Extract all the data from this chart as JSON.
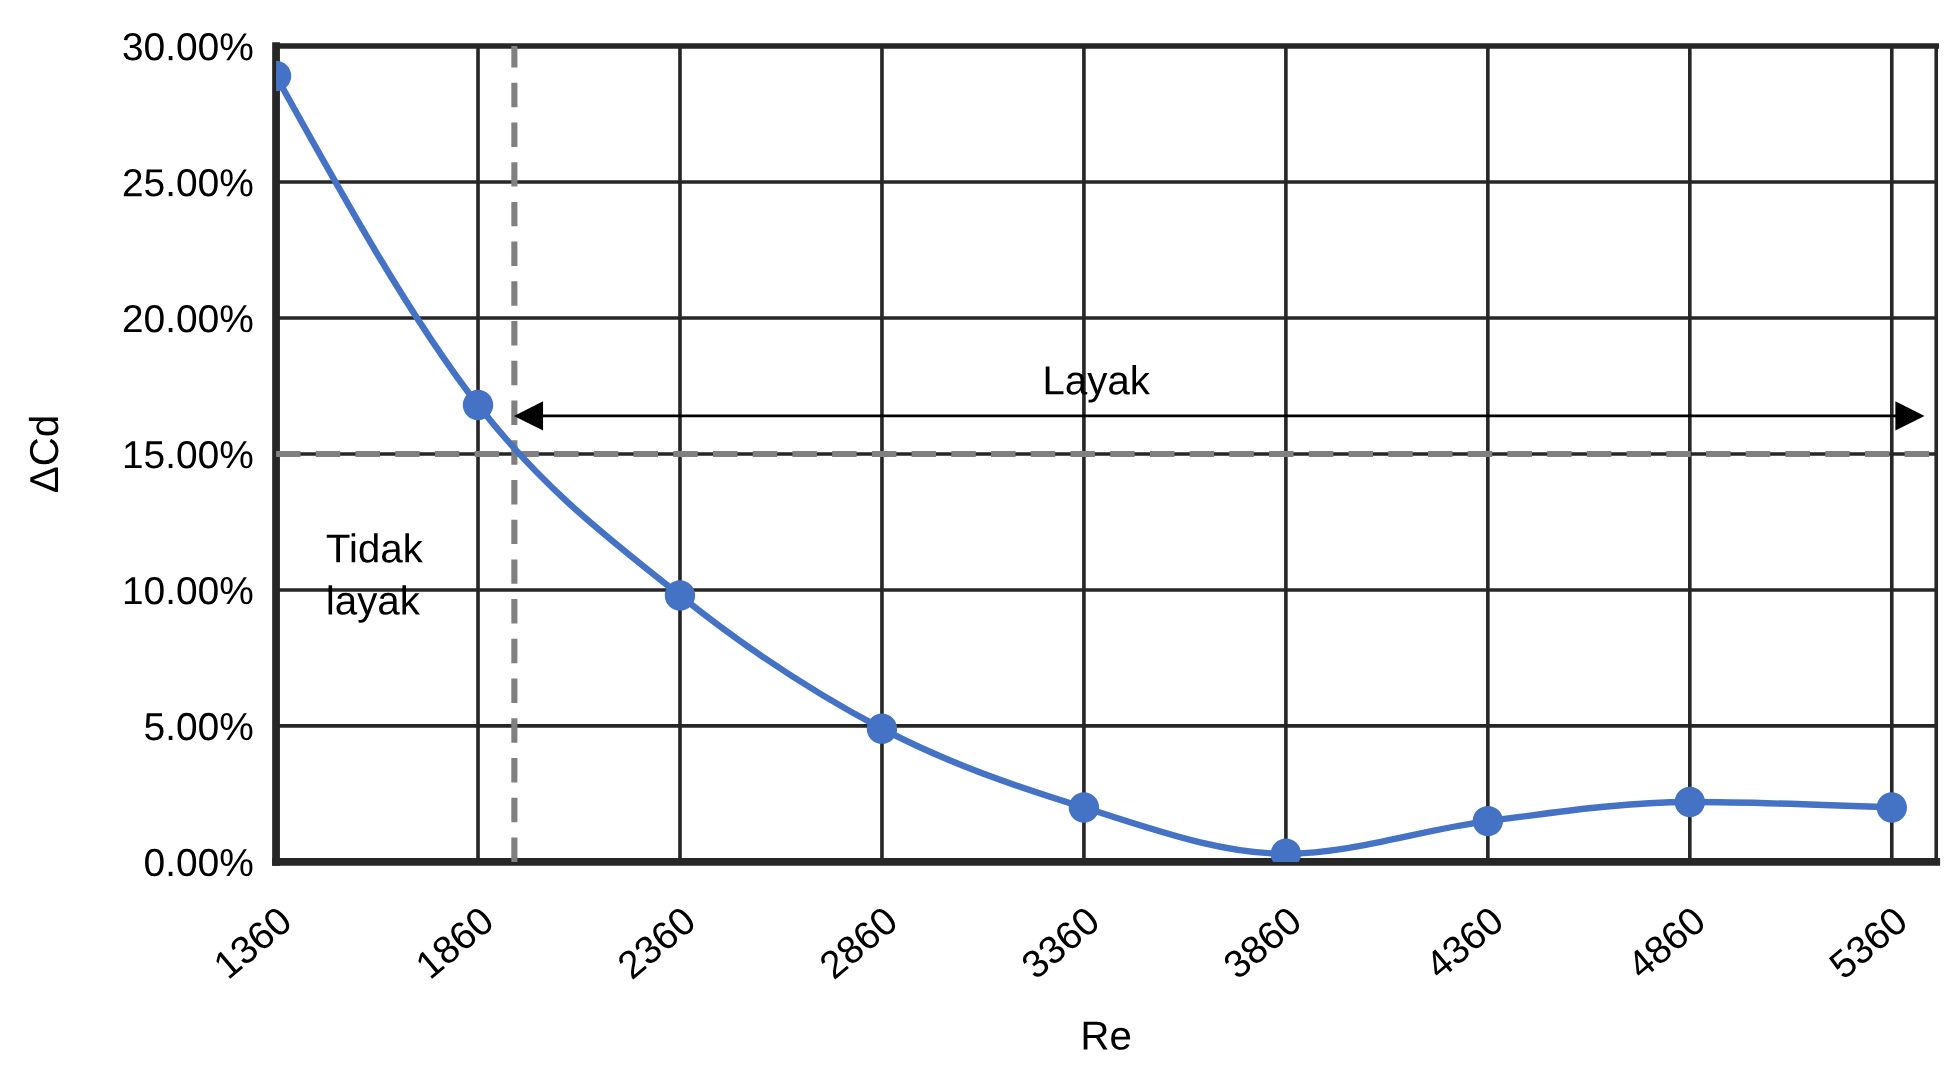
{
  "chart_data": {
    "type": "line",
    "xlabel": "Re",
    "ylabel": "ΔCd",
    "x": [
      1360,
      1860,
      2360,
      2860,
      3360,
      3860,
      4360,
      4860,
      5360
    ],
    "series": [
      {
        "color": "#4472c4",
        "values": [
          28.9,
          16.8,
          9.8,
          4.9,
          2.0,
          0.3,
          1.5,
          2.2,
          2.0
        ]
      },
      {
        "type": "line",
        "x": [
          1985,
          5405
        ],
        "values": [
          16.4,
          16.4
        ],
        "color": "#000000",
        "marker": "triangle"
      }
    ],
    "xlim": [
      1360,
      5470
    ],
    "xticks": [
      1360,
      1860,
      2360,
      2860,
      3360,
      3860,
      4360,
      4860,
      5360
    ],
    "ylim": [
      0,
      30
    ],
    "yticks": [
      {
        "value": 0,
        "label": "0.00%"
      },
      {
        "value": 5,
        "label": "5.00%"
      },
      {
        "value": 10,
        "label": "10.00%"
      },
      {
        "value": 15,
        "label": "15.00%"
      },
      {
        "value": 20,
        "label": "20.00%"
      },
      {
        "value": 25,
        "label": "25.00%"
      },
      {
        "value": 30,
        "label": "30.00%"
      }
    ],
    "grid": true,
    "marker": "circle",
    "line_style": "solid",
    "ref_lines": [
      {
        "axis": "x",
        "value": 1950,
        "color": "#808080",
        "line_style": "dashed"
      },
      {
        "axis": "y",
        "value": 15,
        "color": "#808080",
        "line_style": "dashed"
      }
    ],
    "annotations": [
      "Layak",
      "Tidak\nlayak"
    ]
  }
}
